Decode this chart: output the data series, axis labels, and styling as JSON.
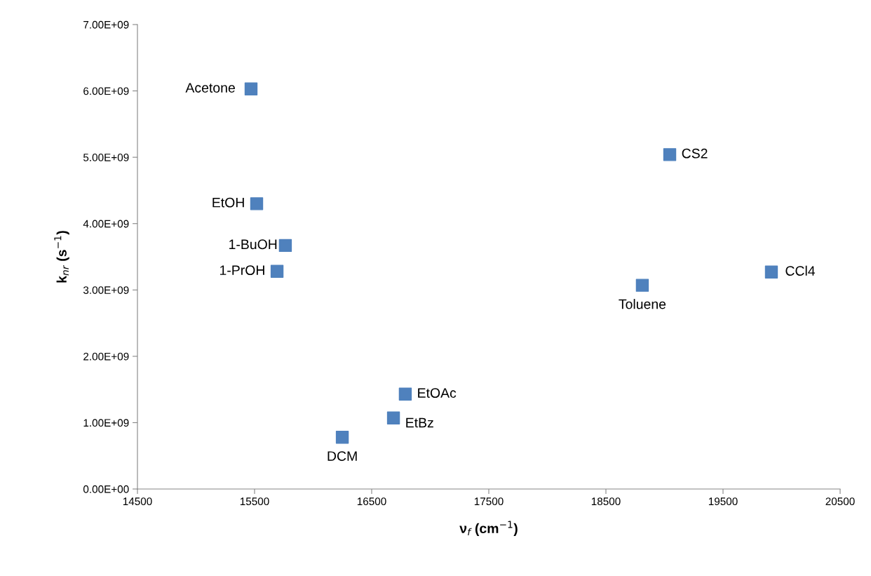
{
  "chart_data": {
    "type": "scatter",
    "xlabel": "ν$_{f}$ (cm$^{−1}$)",
    "ylabel": "k$_{nr}$ (s$^{−1}$)",
    "x": [
      15470,
      19045,
      15518,
      15763,
      15692,
      18811,
      19913,
      16787,
      16686,
      16249
    ],
    "series": [
      {
        "color": "#4f81bd",
        "values": [
          6030000000.0,
          5040000000.0,
          4300000000.0,
          3670000000.0,
          3280000000.0,
          3070000000.0,
          3270000000.0,
          1430000000.0,
          1070000000.0,
          780000000.0
        ]
      }
    ],
    "marker": "square",
    "grid": false,
    "legend": false,
    "xlim": [
      14500,
      20500
    ],
    "xticks": [
      14500,
      15500,
      16500,
      17500,
      18500,
      19500,
      20500
    ],
    "ylim": [
      0,
      7000000000.0
    ],
    "yticks": [
      {
        "value": 0,
        "label": "0.00E+00"
      },
      {
        "value": 1000000000.0,
        "label": "1.00E+09"
      },
      {
        "value": 2000000000.0,
        "label": "2.00E+09"
      },
      {
        "value": 3000000000.0,
        "label": "3.00E+09"
      },
      {
        "value": 4000000000.0,
        "label": "4.00E+09"
      },
      {
        "value": 5000000000.0,
        "label": "5.00E+09"
      },
      {
        "value": 6000000000.0,
        "label": "6.00E+09"
      },
      {
        "value": 7000000000.0,
        "label": "7.00E+09"
      }
    ],
    "annotations": [
      {
        "text": "Acetone",
        "x": 15470,
        "y": 6030000000.0
      },
      {
        "text": "CS2",
        "x": 19045,
        "y": 5040000000.0
      },
      {
        "text": "EtOH",
        "x": 15518,
        "y": 4300000000.0
      },
      {
        "text": "1-BuOH",
        "x": 15763,
        "y": 3670000000.0
      },
      {
        "text": "1-PrOH",
        "x": 15692,
        "y": 3280000000.0
      },
      {
        "text": "Toluene",
        "x": 18811,
        "y": 3070000000.0
      },
      {
        "text": "CCl4",
        "x": 19913,
        "y": 3270000000.0
      },
      {
        "text": "EtOAc",
        "x": 16787,
        "y": 1430000000.0
      },
      {
        "text": "EtBz",
        "x": 16686,
        "y": 1070000000.0
      },
      {
        "text": "DCM",
        "x": 16249,
        "y": 780000000.0
      }
    ]
  }
}
